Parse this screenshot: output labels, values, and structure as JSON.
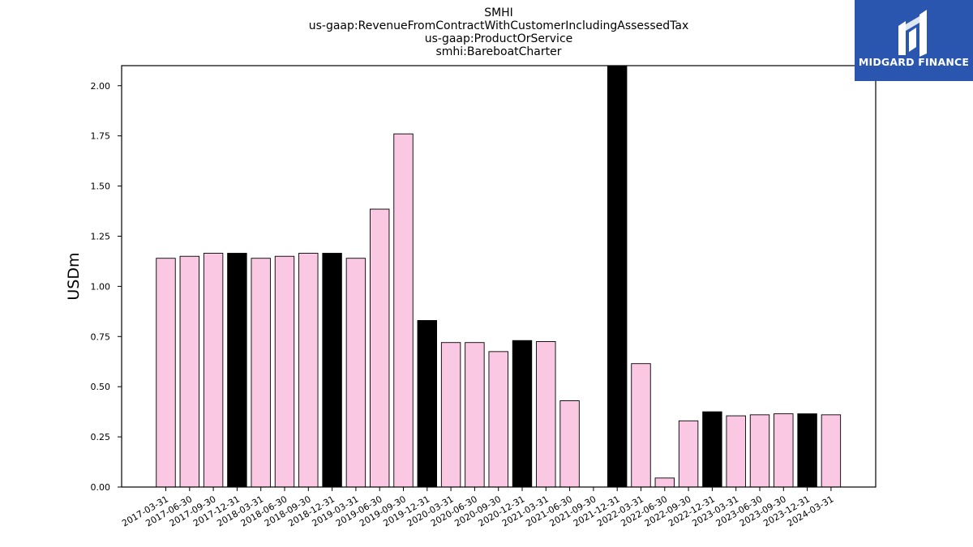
{
  "chart_data": {
    "type": "bar",
    "title_lines": [
      "SMHI",
      "us-gaap:RevenueFromContractWithCustomerIncludingAssessedTax",
      "us-gaap:ProductOrService",
      "smhi:BareboatCharter"
    ],
    "xlabel": "",
    "ylabel": "USDm",
    "ylim": [
      0,
      2.1
    ],
    "yticks": [
      "0.00",
      "0.25",
      "0.50",
      "0.75",
      "1.00",
      "1.25",
      "1.50",
      "1.75",
      "2.00"
    ],
    "categories": [
      "2017-03-31",
      "2017-06-30",
      "2017-09-30",
      "2017-12-31",
      "2018-03-31",
      "2018-06-30",
      "2018-09-30",
      "2018-12-31",
      "2019-03-31",
      "2019-06-30",
      "2019-09-30",
      "2019-12-31",
      "2020-03-31",
      "2020-06-30",
      "2020-09-30",
      "2020-12-31",
      "2021-03-31",
      "2021-06-30",
      "2021-09-30",
      "2021-12-31",
      "2022-03-31",
      "2022-06-30",
      "2022-09-30",
      "2022-12-31",
      "2023-03-31",
      "2023-06-30",
      "2023-09-30",
      "2023-12-31",
      "2024-03-31"
    ],
    "values": [
      1.14,
      1.15,
      1.165,
      1.165,
      1.14,
      1.15,
      1.165,
      1.165,
      1.14,
      1.385,
      1.76,
      0.83,
      0.72,
      0.72,
      0.675,
      0.73,
      0.725,
      0.43,
      null,
      2.1,
      0.615,
      0.045,
      0.33,
      0.375,
      0.355,
      0.36,
      0.365,
      0.365,
      0.36
    ],
    "year_end": [
      false,
      false,
      false,
      true,
      false,
      false,
      false,
      true,
      false,
      false,
      false,
      true,
      false,
      false,
      false,
      true,
      false,
      false,
      false,
      true,
      false,
      false,
      false,
      true,
      false,
      false,
      false,
      true,
      false
    ],
    "colors": {
      "quarter": "#fbc8e3",
      "year_end": "#000000",
      "edge": "#000000"
    },
    "grid": false
  },
  "logo": {
    "text": "MIDGARD FINANCE",
    "background": "#2b56b0"
  }
}
